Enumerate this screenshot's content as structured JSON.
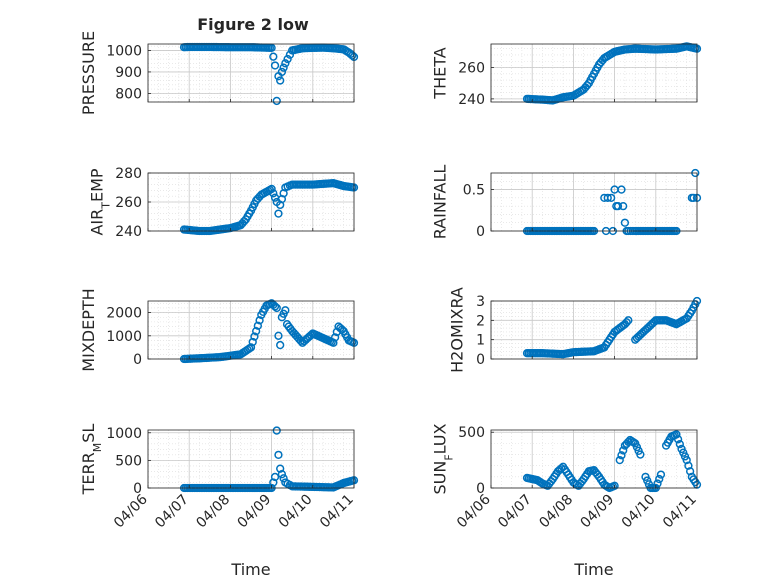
{
  "figure_title": "Figure 2 low",
  "colors": {
    "marker": "#0072bd",
    "axis": "#262626",
    "grid": "#c8c8c8",
    "minor_grid": "#dcdcdc"
  },
  "chart_data": [
    {
      "type": "scatter",
      "marker": "o",
      "ylabel": "PRESSURE",
      "xlabel": "",
      "xlim": [
        "04/06",
        "04/11"
      ],
      "x_ticks": [
        "04/06",
        "04/07",
        "04/08",
        "04/09",
        "04/10",
        "04/11"
      ],
      "ylim": [
        760,
        1030
      ],
      "y_ticks": [
        800,
        900,
        1000
      ],
      "grid": true,
      "x": [
        "04/06 21:00",
        "04/07 00:00",
        "04/07 12:00",
        "04/08 00:00",
        "04/08 12:00",
        "04/09 00:00",
        "04/09 02:00",
        "04/09 03:00",
        "04/09 04:00",
        "04/09 05:00",
        "04/09 06:00",
        "04/09 08:00",
        "04/09 12:00",
        "04/09 18:00",
        "04/10 00:00",
        "04/10 06:00",
        "04/10 12:00",
        "04/10 18:00",
        "04/10 21:00",
        "04/11 00:00"
      ],
      "y": [
        1015,
        1016,
        1016,
        1015,
        1015,
        1012,
        930,
        765,
        880,
        860,
        900,
        940,
        1000,
        1010,
        1012,
        1013,
        1010,
        1005,
        990,
        970
      ]
    },
    {
      "type": "scatter",
      "marker": "o",
      "ylabel": "THETA",
      "xlabel": "",
      "xlim": [
        "04/06",
        "04/11"
      ],
      "x_ticks": [
        "04/06",
        "04/07",
        "04/08",
        "04/09",
        "04/10",
        "04/11"
      ],
      "ylim": [
        238,
        275
      ],
      "y_ticks": [
        240,
        260
      ],
      "grid": true,
      "x": [
        "04/06 21:00",
        "04/07 06:00",
        "04/07 12:00",
        "04/07 18:00",
        "04/08 00:00",
        "04/08 06:00",
        "04/08 09:00",
        "04/08 12:00",
        "04/08 15:00",
        "04/08 18:00",
        "04/08 21:00",
        "04/09 00:00",
        "04/09 06:00",
        "04/09 12:00",
        "04/10 00:00",
        "04/10 12:00",
        "04/10 18:00",
        "04/11 00:00"
      ],
      "y": [
        240,
        239.5,
        239,
        241,
        242,
        246,
        250,
        256,
        262,
        266,
        268,
        270,
        271.5,
        272,
        271.5,
        272,
        273.5,
        272
      ]
    },
    {
      "type": "scatter",
      "marker": "o",
      "ylabel": "AIR_TEMP",
      "xlabel": "",
      "xlim": [
        "04/06",
        "04/11"
      ],
      "x_ticks": [
        "04/06",
        "04/07",
        "04/08",
        "04/09",
        "04/10",
        "04/11"
      ],
      "ylim": [
        240,
        280
      ],
      "y_ticks": [
        240,
        260,
        280
      ],
      "grid": true,
      "x": [
        "04/06 21:00",
        "04/07 06:00",
        "04/07 12:00",
        "04/07 18:00",
        "04/08 00:00",
        "04/08 06:00",
        "04/08 09:00",
        "04/08 12:00",
        "04/08 15:00",
        "04/08 18:00",
        "04/09 00:00",
        "04/09 03:00",
        "04/09 04:00",
        "04/09 05:00",
        "04/09 08:00",
        "04/09 12:00",
        "04/10 00:00",
        "04/10 12:00",
        "04/10 18:00",
        "04/11 00:00"
      ],
      "y": [
        241,
        240,
        240,
        241,
        242,
        244,
        248,
        254,
        261,
        265,
        269,
        260,
        252,
        258,
        270,
        272,
        272,
        273,
        271,
        270
      ]
    },
    {
      "type": "scatter",
      "marker": "o",
      "ylabel": "RAINFALL",
      "xlabel": "",
      "xlim": [
        "04/06",
        "04/11"
      ],
      "x_ticks": [
        "04/06",
        "04/07",
        "04/08",
        "04/09",
        "04/10",
        "04/11"
      ],
      "ylim": [
        0,
        0.7
      ],
      "y_ticks": [
        0,
        0.5
      ],
      "grid": true,
      "x": [
        "04/06 21:00",
        "04/07 12:00",
        "04/08 00:00",
        "04/08 12:00",
        "04/08 18:00",
        "04/08 19:00",
        "04/08 20:00",
        "04/08 22:00",
        "04/08 23:00",
        "04/09 00:00",
        "04/09 01:00",
        "04/09 02:00",
        "04/09 04:00",
        "04/09 05:00",
        "04/09 06:00",
        "04/09 07:00",
        "04/09 08:00",
        "04/09 12:00",
        "04/10 00:00",
        "04/10 12:00",
        "04/10 21:00",
        "04/10 22:00",
        "04/10 23:00",
        "04/11 00:00"
      ],
      "y": [
        0,
        0,
        0,
        0,
        0.4,
        0,
        0.4,
        0.4,
        0,
        0.5,
        0.3,
        0.3,
        0.5,
        0.3,
        0.1,
        0,
        0,
        0,
        0,
        0,
        0.4,
        0.4,
        0.7,
        0.4
      ]
    },
    {
      "type": "scatter",
      "marker": "o",
      "ylabel": "MIXDEPTH",
      "xlabel": "",
      "xlim": [
        "04/06",
        "04/11"
      ],
      "x_ticks": [
        "04/06",
        "04/07",
        "04/08",
        "04/09",
        "04/10",
        "04/11"
      ],
      "ylim": [
        0,
        2500
      ],
      "y_ticks": [
        0,
        1000,
        2000
      ],
      "grid": true,
      "x": [
        "04/06 21:00",
        "04/07 06:00",
        "04/07 18:00",
        "04/08 06:00",
        "04/08 12:00",
        "04/08 15:00",
        "04/08 18:00",
        "04/08 21:00",
        "04/09 00:00",
        "04/09 03:00",
        "04/09 04:00",
        "04/09 05:00",
        "04/09 06:00",
        "04/09 08:00",
        "04/09 09:00",
        "04/09 12:00",
        "04/09 18:00",
        "04/10 00:00",
        "04/10 06:00",
        "04/10 12:00",
        "04/10 15:00",
        "04/10 18:00",
        "04/10 21:00",
        "04/11 00:00"
      ],
      "y": [
        0,
        30,
        80,
        200,
        500,
        1200,
        1900,
        2300,
        2400,
        2200,
        1000,
        600,
        1800,
        2100,
        1500,
        1200,
        700,
        1100,
        900,
        700,
        1400,
        1200,
        800,
        700
      ]
    },
    {
      "type": "scatter",
      "marker": "o",
      "ylabel": "H2OMIXRA",
      "xlabel": "",
      "xlim": [
        "04/06",
        "04/11"
      ],
      "x_ticks": [
        "04/06",
        "04/07",
        "04/08",
        "04/09",
        "04/10",
        "04/11"
      ],
      "ylim": [
        0,
        3
      ],
      "y_ticks": [
        0,
        1,
        2,
        3
      ],
      "grid": true,
      "x": [
        "04/06 21:00",
        "04/07 06:00",
        "04/07 18:00",
        "04/08 00:00",
        "04/08 12:00",
        "04/08 18:00",
        "04/09 00:00",
        "04/09 06:00",
        "04/09 08:00",
        "04/09 12:00",
        "04/09 18:00",
        "04/10 00:00",
        "04/10 06:00",
        "04/10 12:00",
        "04/10 18:00",
        "04/10 21:00",
        "04/11 00:00"
      ],
      "y": [
        0.3,
        0.3,
        0.25,
        0.35,
        0.4,
        0.6,
        1.4,
        1.8,
        2.0,
        1.0,
        1.5,
        2.0,
        2.0,
        1.8,
        2.1,
        2.5,
        3.0
      ]
    },
    {
      "type": "scatter",
      "marker": "o",
      "ylabel": "TERR_MSL",
      "xlabel": "Time",
      "xlim": [
        "04/06",
        "04/11"
      ],
      "x_ticks": [
        "04/06",
        "04/07",
        "04/08",
        "04/09",
        "04/10",
        "04/11"
      ],
      "ylim": [
        0,
        1050
      ],
      "y_ticks": [
        0,
        500,
        1000
      ],
      "grid": true,
      "x": [
        "04/06 21:00",
        "04/07 12:00",
        "04/08 00:00",
        "04/08 12:00",
        "04/09 00:00",
        "04/09 02:00",
        "04/09 03:00",
        "04/09 04:00",
        "04/09 05:00",
        "04/09 06:00",
        "04/09 08:00",
        "04/09 12:00",
        "04/10 00:00",
        "04/10 12:00",
        "04/10 18:00",
        "04/11 00:00"
      ],
      "y": [
        0,
        0,
        0,
        0,
        0,
        200,
        1040,
        600,
        350,
        250,
        100,
        30,
        20,
        10,
        90,
        140
      ]
    },
    {
      "type": "scatter",
      "marker": "o",
      "ylabel": "SUN_FLUX",
      "xlabel": "Time",
      "xlim": [
        "04/06",
        "04/11"
      ],
      "x_ticks": [
        "04/06",
        "04/07",
        "04/08",
        "04/09",
        "04/10",
        "04/11"
      ],
      "ylim": [
        0,
        520
      ],
      "y_ticks": [
        0,
        500
      ],
      "grid": true,
      "x": [
        "04/06 21:00",
        "04/07 00:00",
        "04/07 03:00",
        "04/07 06:00",
        "04/07 09:00",
        "04/07 12:00",
        "04/07 15:00",
        "04/07 18:00",
        "04/07 21:00",
        "04/08 00:00",
        "04/08 03:00",
        "04/08 06:00",
        "04/08 09:00",
        "04/08 12:00",
        "04/08 15:00",
        "04/08 18:00",
        "04/08 21:00",
        "04/09 00:00",
        "04/09 03:00",
        "04/09 06:00",
        "04/09 09:00",
        "04/09 12:00",
        "04/09 15:00",
        "04/09 18:00",
        "04/09 21:00",
        "04/10 00:00",
        "04/10 03:00",
        "04/10 06:00",
        "04/10 09:00",
        "04/10 12:00",
        "04/10 15:00",
        "04/10 18:00",
        "04/10 21:00",
        "04/11 00:00"
      ],
      "y": [
        90,
        80,
        70,
        40,
        20,
        80,
        150,
        190,
        120,
        50,
        20,
        80,
        150,
        160,
        100,
        30,
        0,
        20,
        250,
        380,
        430,
        400,
        300,
        100,
        0,
        0,
        120,
        380,
        460,
        480,
        350,
        250,
        100,
        30
      ]
    }
  ]
}
